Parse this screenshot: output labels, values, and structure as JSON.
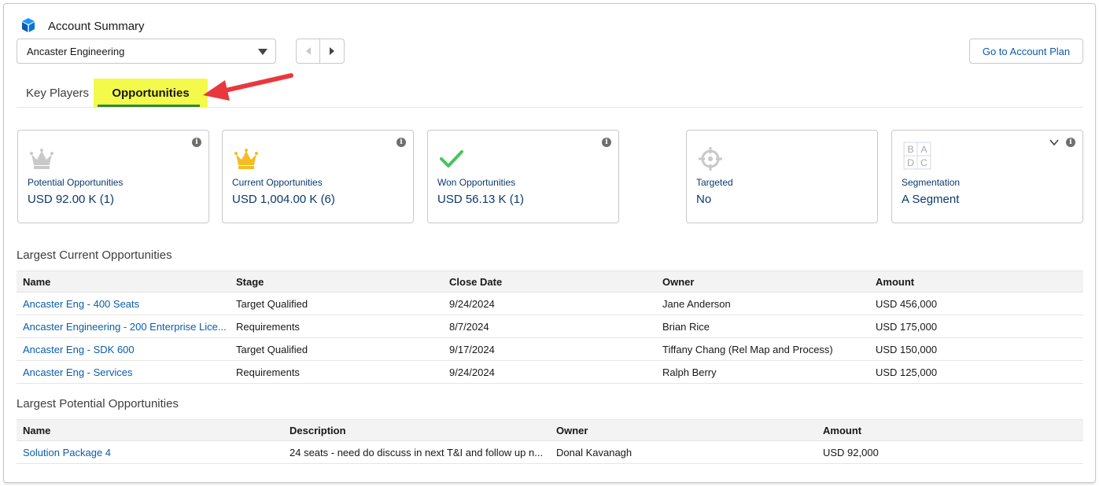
{
  "header": {
    "title": "Account Summary",
    "icon": "cube-icon",
    "accent": "#0b5cab"
  },
  "account_select": {
    "value": "Ancaster Engineering"
  },
  "actions": {
    "plan_label": "Go to Account Plan"
  },
  "tabs": [
    {
      "label": "Key Players",
      "active": false
    },
    {
      "label": "Opportunities",
      "active": true
    }
  ],
  "tiles": [
    {
      "icon": "crown-icon",
      "label": "Potential Opportunities",
      "value": "USD 92.00 K (1)",
      "icon_color": "#c9c9c9"
    },
    {
      "icon": "crown-icon",
      "label": "Current Opportunities",
      "value": "USD 1,004.00 K (6)",
      "icon_color": "#f4bc25"
    },
    {
      "icon": "check-icon",
      "label": "Won Opportunities",
      "value": "USD 56.13 K (1)",
      "icon_color": "#45c65a"
    },
    {
      "icon": "target-icon",
      "label": "Targeted",
      "value": "No",
      "icon_color": "#c9c9c9"
    },
    {
      "icon": "segment-icon",
      "label": "Segmentation",
      "value": "A Segment",
      "icon_letters": [
        "B",
        "A",
        "D",
        "C"
      ]
    }
  ],
  "current": {
    "title": "Largest Current Opportunities",
    "columns": [
      "Name",
      "Stage",
      "Close Date",
      "Owner",
      "Amount"
    ],
    "rows": [
      [
        "Ancaster Eng - 400 Seats",
        "Target Qualified",
        "9/24/2024",
        "Jane Anderson",
        "USD 456,000"
      ],
      [
        "Ancaster Engineering - 200 Enterprise Lice...",
        "Requirements",
        "8/7/2024",
        "Brian Rice",
        "USD 175,000"
      ],
      [
        "Ancaster Eng - SDK 600",
        "Target Qualified",
        "9/17/2024",
        "Tiffany Chang (Rel Map and Process)",
        "USD 150,000"
      ],
      [
        "Ancaster Eng - Services",
        "Requirements",
        "9/24/2024",
        "Ralph Berry",
        "USD 125,000"
      ]
    ]
  },
  "potential": {
    "title": "Largest Potential Opportunities",
    "columns": [
      "Name",
      "Description",
      "Owner",
      "Amount"
    ],
    "rows": [
      [
        "Solution Package 4",
        "24 seats - need do discuss in next T&I and follow up n...",
        "Donal Kavanagh",
        "USD 92,000"
      ]
    ]
  },
  "colors": {
    "highlight": "#f3fa4a",
    "annotation_arrow": "#e8383d",
    "link": "#0b5cab"
  }
}
